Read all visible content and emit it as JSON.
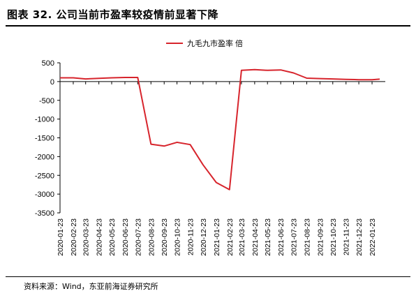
{
  "header": {
    "title": "图表 32. 公司当前市盈率较疫情前显著下降"
  },
  "footer": {
    "source": "资料来源：Wind，东亚前海证券研究所"
  },
  "colors": {
    "series": "#d7242c",
    "axis": "#000000",
    "zero_line": "#000000"
  },
  "chart_data": {
    "type": "line",
    "title": "",
    "xlabel": "",
    "ylabel": "",
    "ylim": [
      -3500,
      500
    ],
    "yticks": [
      500,
      0,
      -500,
      -1000,
      -1500,
      -2000,
      -2500,
      -3000,
      -3500
    ],
    "ytick_labels": [
      "500",
      "0",
      "-500",
      "-1000",
      "-1500",
      "-2000",
      "-2500",
      "-3000",
      "-3500"
    ],
    "xticks": [
      "2020-01-23",
      "2020-02-23",
      "2020-03-23",
      "2020-04-23",
      "2020-05-23",
      "2020-06-23",
      "2020-07-23",
      "2020-08-23",
      "2020-09-23",
      "2020-10-23",
      "2020-11-23",
      "2020-12-23",
      "2021-01-23",
      "2021-02-23",
      "2021-03-23",
      "2021-04-23",
      "2021-05-23",
      "2021-06-23",
      "2021-07-23",
      "2021-08-23",
      "2021-09-23",
      "2021-10-23",
      "2021-11-23",
      "2021-12-23",
      "2022-01-23"
    ],
    "grid": false,
    "legend_position": "top-center",
    "series": [
      {
        "name": "九毛九市盈率 倍",
        "x": [
          "2020-01-23",
          "2020-02-23",
          "2020-03-23",
          "2020-04-23",
          "2020-05-23",
          "2020-06-23",
          "2020-07-23",
          "2020-08-23",
          "2020-09-23",
          "2020-10-23",
          "2020-11-23",
          "2020-12-23",
          "2021-01-23",
          "2021-02-23",
          "2021-03-23",
          "2021-04-23",
          "2021-05-23",
          "2021-06-23",
          "2021-07-23",
          "2021-08-23",
          "2021-09-23",
          "2021-10-23",
          "2021-11-23",
          "2021-12-23",
          "2022-01-23",
          "2022-02-10"
        ],
        "values": [
          100,
          100,
          70,
          85,
          100,
          110,
          110,
          -1670,
          -1720,
          -1620,
          -1680,
          -2220,
          -2690,
          -2880,
          300,
          320,
          300,
          310,
          230,
          90,
          80,
          70,
          60,
          50,
          50,
          65
        ]
      }
    ]
  }
}
